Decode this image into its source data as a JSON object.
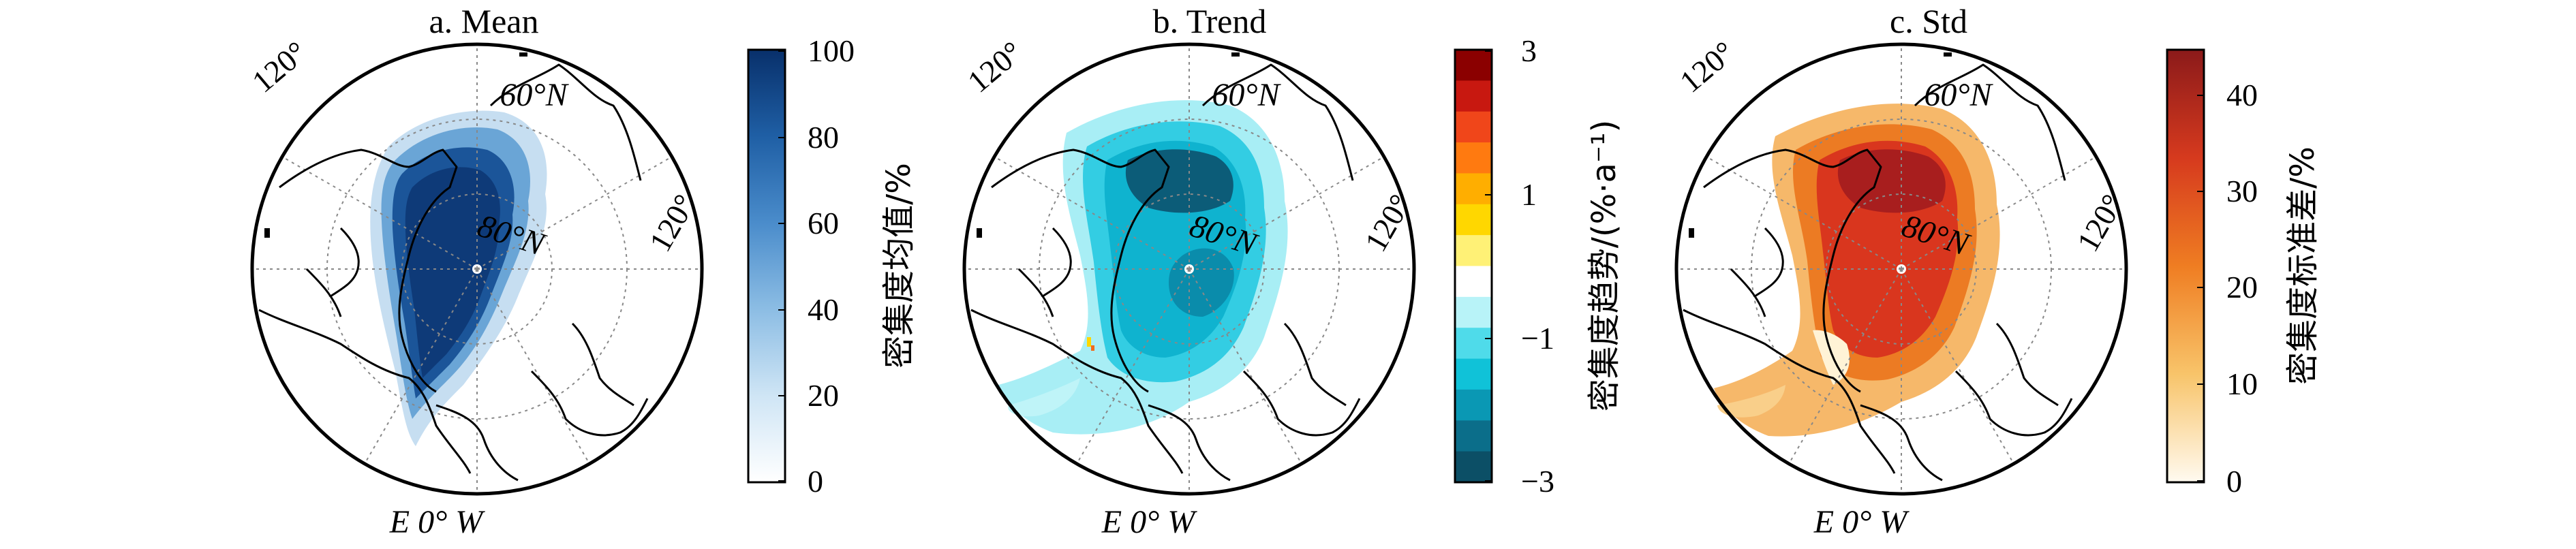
{
  "panels": [
    {
      "id": "mean",
      "title": "a. Mean",
      "colorbar": {
        "label": "密集度均值/%",
        "ticks": [
          "100",
          "80",
          "60",
          "40",
          "20",
          "0"
        ],
        "colors_top_to_bottom": [
          "#08306b",
          "#164c93",
          "#2a6cb0",
          "#4a8ccb",
          "#7cb2dd",
          "#b3d5ee",
          "#dcecf8",
          "#ffffff"
        ]
      },
      "map_labels": {
        "lon_left": "120°",
        "lon_right": "120°",
        "lat_outer": "60°N",
        "lat_inner": "80°N",
        "bottom": "E 0° W"
      }
    },
    {
      "id": "trend",
      "title": "b. Trend",
      "colorbar": {
        "label": "密集度趋势/(%·a⁻¹)",
        "ticks": [
          "3",
          "1",
          "−1",
          "−3"
        ],
        "colors_top_to_bottom": [
          "#8b0000",
          "#c81810",
          "#f0461a",
          "#ff7a10",
          "#ffae00",
          "#ffd700",
          "#fff176",
          "#ffffff",
          "#b8f3f8",
          "#4fdbea",
          "#10c2d8",
          "#0a98b4",
          "#0b6e8a",
          "#0c4f66"
        ]
      },
      "map_labels": {
        "lon_left": "120°",
        "lon_right": "120°",
        "lat_outer": "60°N",
        "lat_inner": "80°N",
        "bottom": "E 0° W"
      }
    },
    {
      "id": "std",
      "title": "c. Std",
      "colorbar": {
        "label": "密集度标准差/%",
        "ticks": [
          "40",
          "30",
          "20",
          "10",
          "0"
        ],
        "colors_top_to_bottom": [
          "#8b1a1a",
          "#b82020",
          "#d83a1e",
          "#e8601c",
          "#f08a2a",
          "#f5b048",
          "#fad27e",
          "#fef0c4",
          "#fffaf0"
        ]
      },
      "map_labels": {
        "lon_left": "120°",
        "lon_right": "120°",
        "lat_outer": "60°N",
        "lat_inner": "80°N",
        "bottom": "E 0° W"
      }
    }
  ]
}
